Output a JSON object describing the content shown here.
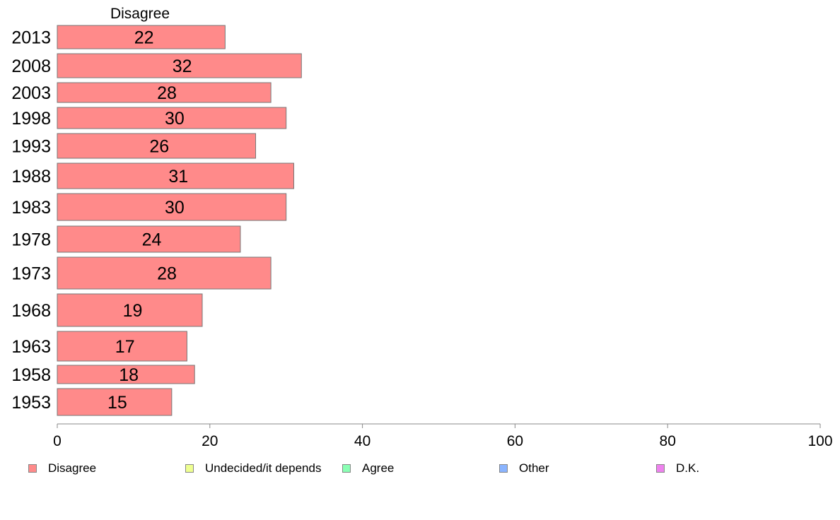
{
  "chart_data": {
    "type": "bar",
    "orientation": "horizontal",
    "series_label": "Disagree",
    "categories": [
      "2013",
      "2008",
      "2003",
      "1998",
      "1993",
      "1988",
      "1983",
      "1978",
      "1973",
      "1968",
      "1963",
      "1958",
      "1953"
    ],
    "series": [
      {
        "name": "Disagree",
        "values": [
          22,
          32,
          28,
          30,
          26,
          31,
          30,
          24,
          28,
          19,
          17,
          18,
          15
        ]
      }
    ],
    "xlim": [
      0,
      100
    ],
    "xticks": [
      "0",
      "20",
      "40",
      "60",
      "80",
      "100"
    ],
    "grid": false,
    "legend_position": "bottom",
    "legend": [
      {
        "label": "Disagree",
        "color": "#ff8a8a"
      },
      {
        "label": "Undecided/it depends",
        "color": "#eeff90"
      },
      {
        "label": "Agree",
        "color": "#8affb4"
      },
      {
        "label": "Other",
        "color": "#8ab4ff"
      },
      {
        "label": "D.K.",
        "color": "#ee82ee"
      }
    ],
    "bar_color": "#ff8a8a",
    "bar_stroke": "#777777"
  }
}
